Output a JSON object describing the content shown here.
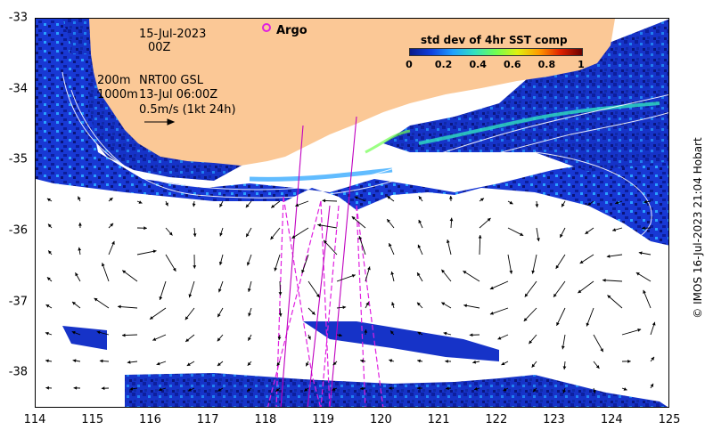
{
  "map": {
    "date": "15-Jul-2023",
    "hour": "00Z",
    "depth_line_1": "200m",
    "depth_line_2": "1000m",
    "product": "NRT00 GSL",
    "altimetry_time": "13-Jul 06:00Z",
    "velocity_scale": "0.5m/s (1kt 24h)",
    "argo_label": "Argo",
    "colorbar_title": "std dev of 4hr SST comp",
    "colorbar_ticks": [
      "0",
      "0.2",
      "0.4",
      "0.6",
      "0.8",
      "1"
    ],
    "credit": "© IMOS 16-Jul-2023 21:04 Hobart",
    "x_ticks": [
      "114",
      "115",
      "116",
      "117",
      "118",
      "119",
      "120",
      "121",
      "122",
      "123",
      "124",
      "125"
    ],
    "y_ticks": [
      "-33",
      "-34",
      "-35",
      "-36",
      "-37",
      "-38"
    ],
    "lon_range": [
      114,
      125
    ],
    "lat_range": [
      -38.5,
      -33
    ],
    "colors": {
      "land": "#fbc896",
      "sst_low": "#0a1a8a",
      "sst_high": "#6a0000",
      "argo": "#e020e0",
      "frame": "#000000"
    }
  }
}
